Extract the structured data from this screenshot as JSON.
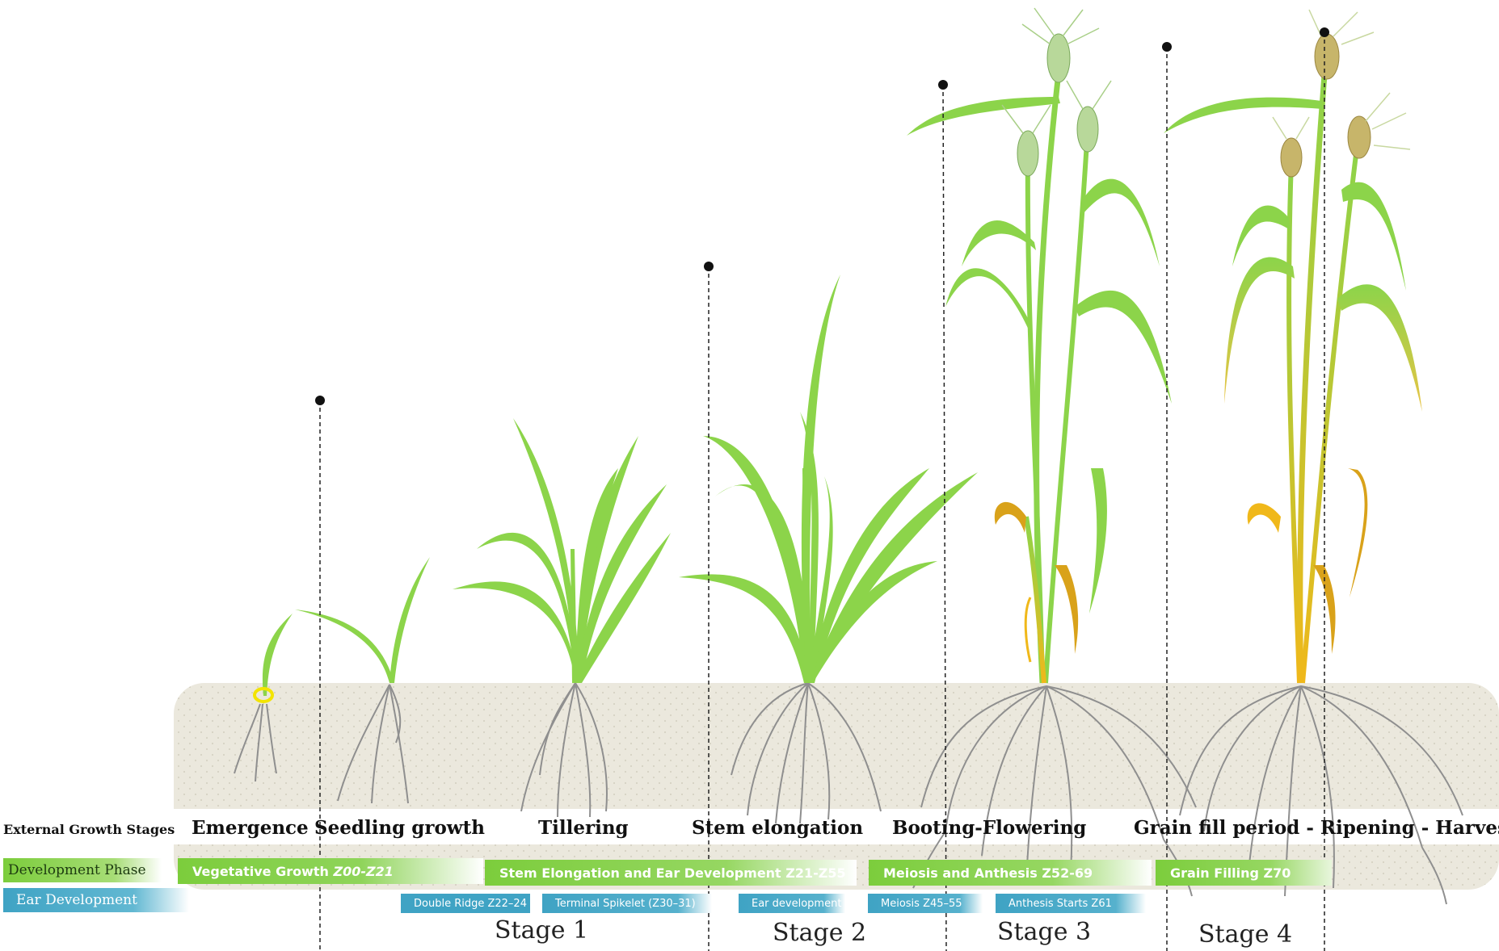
{
  "rows": {
    "external": "External Growth Stages",
    "development": "Development Phase",
    "ear": "Ear Development"
  },
  "external_stages": [
    {
      "label": "Emergence"
    },
    {
      "label": "Seedling growth"
    },
    {
      "label": "Tillering"
    },
    {
      "label": "Stem elongation"
    },
    {
      "label": "Booting-Flowering"
    },
    {
      "label": "Grain fill period - Ripening - Harvest"
    }
  ],
  "development_phases": [
    {
      "label": "Vegetative Growth",
      "code": "Z00-Z21"
    },
    {
      "label": "Stem Elongation and Ear Development Z21-Z55"
    },
    {
      "label": "Meiosis and Anthesis  Z52-69"
    },
    {
      "label": "Grain Filling Z70"
    }
  ],
  "ear_development": [
    {
      "label": "Double Ridge Z22–24"
    },
    {
      "label": "Terminal Spikelet (Z30–31)"
    },
    {
      "label": "Ear development"
    },
    {
      "label": "Meiosis Z45–55"
    },
    {
      "label": "Anthesis Starts Z61"
    }
  ],
  "stages": [
    {
      "label": "Stage 1"
    },
    {
      "label": "Stage 2"
    },
    {
      "label": "Stage 3"
    },
    {
      "label": "Stage 4"
    }
  ],
  "colors": {
    "leaf": "#8cd44a",
    "soil": "#ebe8dd",
    "root": "#8f8f8f",
    "phase_green": "#7ccd3c",
    "ear_blue": "#3fa3c4",
    "senescent": "#d9a21a"
  }
}
